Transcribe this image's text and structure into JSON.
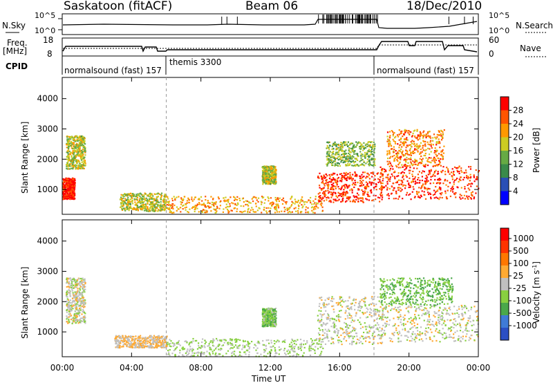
{
  "header": {
    "title": "Saskatoon (fitACF)",
    "beam": "Beam 06",
    "date": "18/Dec/2010"
  },
  "noise_panel": {
    "left_label": "N.Sky",
    "right_label": "N.Search",
    "left_ticks": [
      "10^5",
      "10^0"
    ],
    "right_ticks": [
      "10^5",
      "10^0"
    ]
  },
  "freq_panel": {
    "left_label_1": "Freq.",
    "left_label_2": "[MHz]",
    "left_ticks": [
      "18",
      "8"
    ],
    "right_ticks": [
      "60",
      "0"
    ],
    "right_label": "Nave"
  },
  "cpid": {
    "label": "CPID",
    "segments": [
      {
        "text": "normalsound (fast) 157",
        "start_hour": 0
      },
      {
        "text": "themis 3300",
        "start_hour": 6
      },
      {
        "text": "normalsound (fast) 157",
        "start_hour": 18
      }
    ]
  },
  "colors": {
    "power_scale": [
      "#0000ff",
      "#2a4fb5",
      "#3a8a4a",
      "#66aa44",
      "#cccc22",
      "#ff9900",
      "#ff5500",
      "#ff0000"
    ],
    "velocity_scale": [
      "#2b4fc4",
      "#3f7bd6",
      "#4aa84a",
      "#88d040",
      "#c0c0c0",
      "#ffaa33",
      "#ff7700",
      "#ff3300",
      "#ff0000"
    ]
  },
  "chart_data": [
    {
      "type": "heatmap",
      "ylabel": "Slant Range [km]",
      "xlabel": "Time UT",
      "xlim_hours": [
        0,
        24
      ],
      "ylim_km": [
        180,
        4700
      ],
      "y_ticks": [
        "1000",
        "2000",
        "3000",
        "4000"
      ],
      "x_ticks": [
        "00:00",
        "04:00",
        "08:00",
        "12:00",
        "16:00",
        "20:00",
        "00:00"
      ],
      "colorbar": {
        "label": "Power [dB]",
        "ticks": [
          "4",
          "8",
          "12",
          "16",
          "20",
          "24",
          "28"
        ],
        "range": [
          0,
          30
        ]
      },
      "regions": [
        {
          "t0": 0.0,
          "t1": 0.7,
          "r0": 700,
          "r1": 1400,
          "level": 28
        },
        {
          "t0": 0.2,
          "t1": 1.3,
          "r0": 1700,
          "r1": 2800,
          "level": 16
        },
        {
          "t0": 3.3,
          "t1": 6.0,
          "r0": 300,
          "r1": 900,
          "level": 16
        },
        {
          "t0": 6.0,
          "t1": 15.0,
          "r0": 250,
          "r1": 800,
          "level": 20
        },
        {
          "t0": 11.5,
          "t1": 12.3,
          "r0": 1200,
          "r1": 1800,
          "level": 16
        },
        {
          "t0": 14.7,
          "t1": 18.5,
          "r0": 600,
          "r1": 1600,
          "level": 26
        },
        {
          "t0": 15.2,
          "t1": 18.0,
          "r0": 1800,
          "r1": 2600,
          "level": 14
        },
        {
          "t0": 18.3,
          "t1": 24.0,
          "r0": 700,
          "r1": 1800,
          "level": 26
        },
        {
          "t0": 18.7,
          "t1": 22.0,
          "r0": 1800,
          "r1": 3000,
          "level": 22
        }
      ]
    },
    {
      "type": "heatmap",
      "ylabel": "Slant Range [km]",
      "xlabel": "Time UT",
      "xlim_hours": [
        0,
        24
      ],
      "ylim_km": [
        180,
        4700
      ],
      "y_ticks": [
        "1000",
        "2000",
        "3000",
        "4000"
      ],
      "x_ticks": [
        "00:00",
        "04:00",
        "08:00",
        "12:00",
        "16:00",
        "20:00",
        "00:00"
      ],
      "colorbar": {
        "label": "Velocity [m s",
        "label_superscript": "-1",
        "label_tail": "]",
        "ticks": [
          "1000",
          "500",
          "100",
          "25",
          "-25",
          "-100",
          "-500",
          "-1000"
        ],
        "range": [
          -1200,
          1200
        ]
      },
      "regions": [
        {
          "t0": 0.2,
          "t1": 1.3,
          "r0": 1300,
          "r1": 2800,
          "level": 0
        },
        {
          "t0": 3.0,
          "t1": 6.0,
          "r0": 500,
          "r1": 900,
          "level": 150
        },
        {
          "t0": 6.0,
          "t1": 15.0,
          "r0": 200,
          "r1": 800,
          "level": -150
        },
        {
          "t0": 11.5,
          "t1": 12.3,
          "r0": 1200,
          "r1": 1800,
          "level": -300
        },
        {
          "t0": 14.7,
          "t1": 18.5,
          "r0": 600,
          "r1": 2200,
          "level": 0
        },
        {
          "t0": 18.3,
          "t1": 22.5,
          "r0": 1900,
          "r1": 2800,
          "level": -400
        },
        {
          "t0": 18.3,
          "t1": 24.0,
          "r0": 700,
          "r1": 1900,
          "level": 0
        }
      ]
    }
  ]
}
